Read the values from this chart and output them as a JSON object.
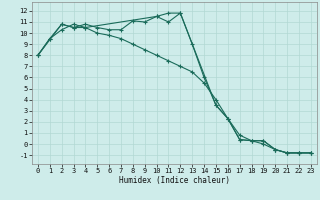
{
  "xlabel": "Humidex (Indice chaleur)",
  "ylabel": "",
  "bg_color": "#ceecea",
  "grid_color": "#b2d8d4",
  "line_color": "#1a6b5a",
  "xlim": [
    -0.5,
    23.5
  ],
  "ylim": [
    -1.8,
    12.8
  ],
  "xticks": [
    0,
    1,
    2,
    3,
    4,
    5,
    6,
    7,
    8,
    9,
    10,
    11,
    12,
    13,
    14,
    15,
    16,
    17,
    18,
    19,
    20,
    21,
    22,
    23
  ],
  "yticks": [
    -1,
    0,
    1,
    2,
    3,
    4,
    5,
    6,
    7,
    8,
    9,
    10,
    11,
    12
  ],
  "series1_x": [
    0,
    1,
    2,
    3,
    4,
    5,
    6,
    7,
    8,
    9,
    10,
    11,
    12,
    13,
    14,
    15,
    16,
    17,
    18,
    19,
    20,
    21,
    22,
    23
  ],
  "series1_y": [
    8.0,
    9.5,
    10.8,
    10.5,
    10.8,
    10.5,
    10.3,
    10.3,
    11.1,
    11.0,
    11.5,
    11.0,
    11.8,
    9.0,
    6.0,
    3.5,
    2.3,
    0.4,
    0.3,
    0.3,
    -0.5,
    -0.8,
    -0.8,
    -0.8
  ],
  "series2_x": [
    0,
    1,
    2,
    3,
    4,
    5,
    6,
    7,
    8,
    9,
    10,
    11,
    12,
    13,
    14,
    15,
    16,
    17,
    18,
    19,
    20,
    21,
    22,
    23
  ],
  "series2_y": [
    8.0,
    9.5,
    10.3,
    10.8,
    10.5,
    10.0,
    9.8,
    9.5,
    9.0,
    8.5,
    8.0,
    7.5,
    7.0,
    6.5,
    5.5,
    4.0,
    2.3,
    0.8,
    0.3,
    0.0,
    -0.5,
    -0.8,
    -0.8,
    -0.8
  ],
  "series3_x": [
    0,
    2,
    3,
    4,
    10,
    11,
    12,
    15,
    16,
    17,
    18,
    19,
    20,
    21,
    22,
    23
  ],
  "series3_y": [
    8.0,
    10.8,
    10.5,
    10.5,
    11.5,
    11.8,
    11.8,
    3.5,
    2.3,
    0.4,
    0.3,
    0.3,
    -0.5,
    -0.8,
    -0.8,
    -0.8
  ],
  "xlabel_fontsize": 5.5,
  "tick_fontsize": 5.0,
  "lw": 0.8,
  "ms": 2.0
}
